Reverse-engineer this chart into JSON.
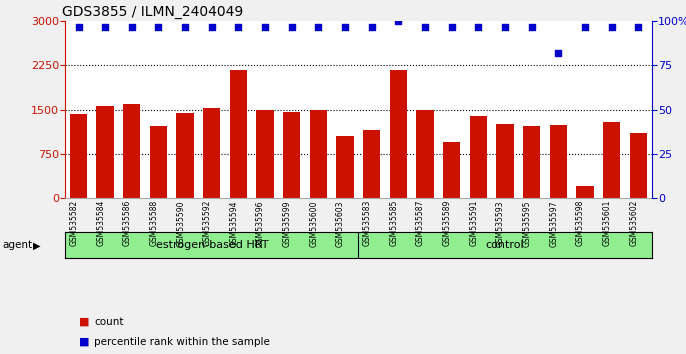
{
  "title": "GDS3855 / ILMN_2404049",
  "samples": [
    "GSM535582",
    "GSM535584",
    "GSM535586",
    "GSM535588",
    "GSM535590",
    "GSM535592",
    "GSM535594",
    "GSM535596",
    "GSM535599",
    "GSM535600",
    "GSM535603",
    "GSM535583",
    "GSM535585",
    "GSM535587",
    "GSM535589",
    "GSM535591",
    "GSM535593",
    "GSM535595",
    "GSM535597",
    "GSM535598",
    "GSM535601",
    "GSM535602"
  ],
  "counts": [
    1420,
    1570,
    1600,
    1230,
    1450,
    1530,
    2170,
    1490,
    1460,
    1490,
    1050,
    1150,
    2170,
    1490,
    950,
    1400,
    1250,
    1230,
    1240,
    200,
    1300,
    1100
  ],
  "percentiles": [
    97,
    97,
    97,
    97,
    97,
    97,
    97,
    97,
    97,
    97,
    97,
    97,
    100,
    97,
    97,
    97,
    97,
    97,
    82,
    97,
    97,
    97
  ],
  "groups": [
    "estrogen-based HRT",
    "estrogen-based HRT",
    "estrogen-based HRT",
    "estrogen-based HRT",
    "estrogen-based HRT",
    "estrogen-based HRT",
    "estrogen-based HRT",
    "estrogen-based HRT",
    "estrogen-based HRT",
    "estrogen-based HRT",
    "estrogen-based HRT",
    "control",
    "control",
    "control",
    "control",
    "control",
    "control",
    "control",
    "control",
    "control",
    "control",
    "control"
  ],
  "bar_color": "#CC1100",
  "dot_color": "#0000CC",
  "left_axis_color": "#CC1100",
  "right_axis_color": "#0000CC",
  "ylim_left": [
    0,
    3000
  ],
  "yticks_left": [
    0,
    750,
    1500,
    2250,
    3000
  ],
  "yticks_right": [
    0,
    25,
    50,
    75,
    100
  ],
  "grid_values": [
    750,
    1500,
    2250
  ],
  "plot_bg_color": "#ffffff",
  "group_color": "#90EE90",
  "agent_label": "agent",
  "legend_count_label": "count",
  "legend_percentile_label": "percentile rank within the sample"
}
